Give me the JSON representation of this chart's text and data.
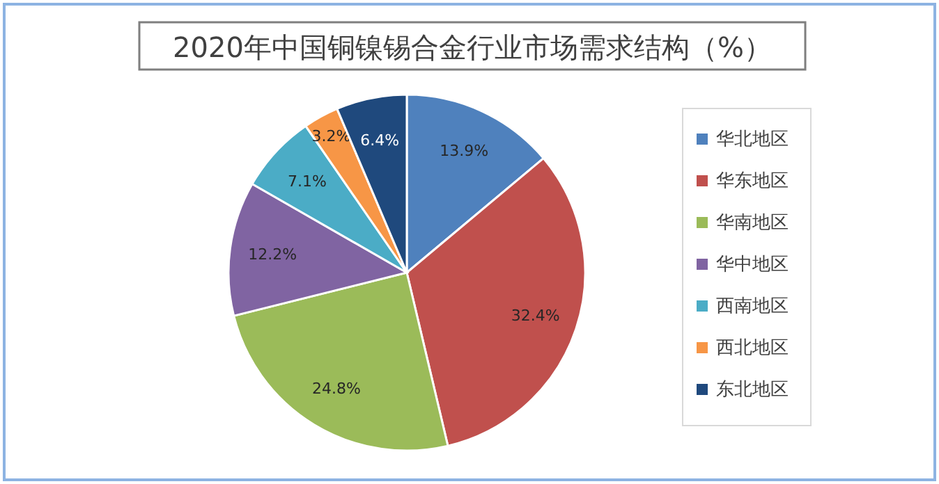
{
  "chart_data": {
    "type": "pie",
    "title": "2020年中国铜镍锡合金行业市场需求结构（%）",
    "categories": [
      "华北地区",
      "华东地区",
      "华南地区",
      "华中地区",
      "西南地区",
      "西北地区",
      "东北地区"
    ],
    "values": [
      13.9,
      32.4,
      24.8,
      12.2,
      7.1,
      3.2,
      6.4
    ],
    "colors": [
      "#4f81bd",
      "#c0504d",
      "#9bbb59",
      "#8064a2",
      "#4bacc6",
      "#f79646",
      "#1f497d"
    ],
    "value_labels": [
      "13.9%",
      "32.4%",
      "24.8%",
      "12.2%",
      "7.1%",
      "3.2%",
      "6.4%"
    ],
    "legend": "right"
  }
}
